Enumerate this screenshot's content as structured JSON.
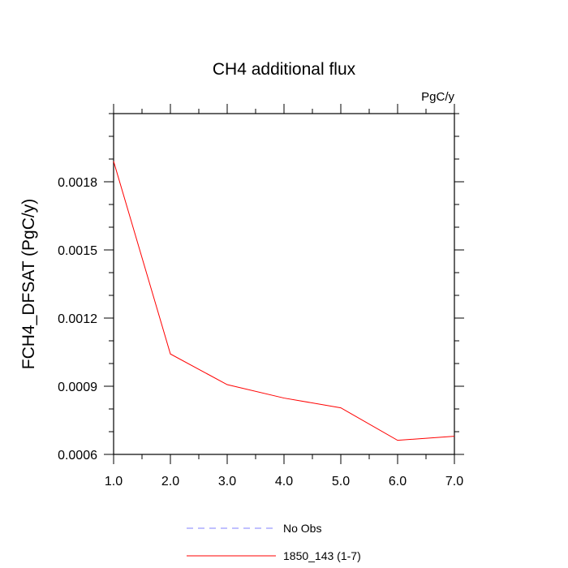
{
  "chart_data": {
    "type": "line",
    "title": "CH4 additional flux",
    "units": "PgC/y",
    "ylabel": "FCH4_DFSAT  (PgC/y)",
    "xlabel": "",
    "xlim": [
      1.0,
      7.0
    ],
    "ylim": [
      0.0006,
      0.0021
    ],
    "x_ticks": [
      1.0,
      2.0,
      3.0,
      4.0,
      5.0,
      6.0,
      7.0
    ],
    "x_tick_labels": [
      "1.0",
      "2.0",
      "3.0",
      "4.0",
      "5.0",
      "6.0",
      "7.0"
    ],
    "y_ticks": [
      0.0006,
      0.0009,
      0.0012,
      0.0015,
      0.0018
    ],
    "y_tick_labels": [
      "0.0006",
      "0.0009",
      "0.0012",
      "0.0015",
      "0.0018"
    ],
    "grid": false,
    "legend_position": "bottom",
    "series": [
      {
        "name": "No Obs",
        "color": "#8080ff",
        "dash": true,
        "x": [],
        "values": []
      },
      {
        "name": "1850_143 (1-7)",
        "color": "#ff0000",
        "dash": false,
        "x": [
          1,
          2,
          3,
          4,
          5,
          6,
          7
        ],
        "values": [
          0.00189,
          0.001042,
          0.000907,
          0.000848,
          0.000805,
          0.000662,
          0.00068
        ]
      }
    ]
  }
}
